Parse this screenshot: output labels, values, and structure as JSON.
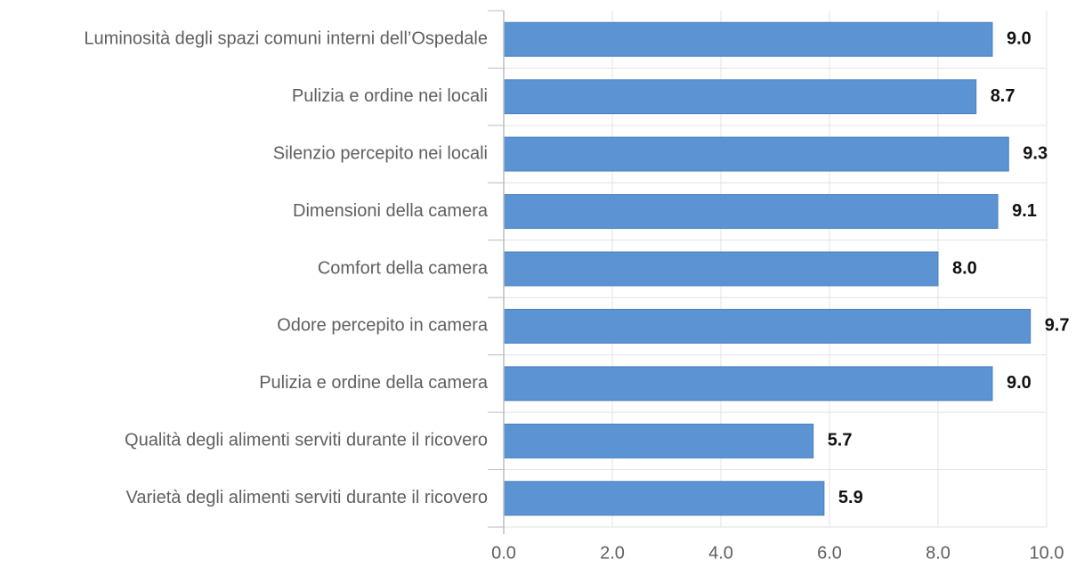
{
  "chart_data": {
    "type": "bar",
    "orientation": "horizontal",
    "categories": [
      "Luminosità degli spazi comuni interni dell’Ospedale",
      "Pulizia e ordine nei locali",
      "Silenzio percepito nei locali",
      "Dimensioni della camera",
      "Comfort della camera",
      "Odore percepito in camera",
      "Pulizia e ordine della camera",
      "Qualità degli alimenti serviti durante il ricovero",
      "Varietà degli alimenti serviti durante il ricovero"
    ],
    "values": [
      9.0,
      8.7,
      9.3,
      9.1,
      8.0,
      9.7,
      9.0,
      5.7,
      5.9
    ],
    "value_labels": [
      "9.0",
      "8.7",
      "9.3",
      "9.1",
      "8.0",
      "9.7",
      "9.0",
      "5.7",
      "5.9"
    ],
    "xlim": [
      0,
      10
    ],
    "x_ticks": [
      0,
      2,
      4,
      6,
      8,
      10
    ],
    "x_tick_labels": [
      "0.0",
      "2.0",
      "4.0",
      "6.0",
      "8.0",
      "10.0"
    ],
    "title": "",
    "xlabel": "",
    "ylabel": "",
    "grid": true,
    "legend": "none",
    "bar_color": "#5b93d3",
    "grid_color": "#e3e3e3",
    "axis_color": "#bdbdbd"
  }
}
